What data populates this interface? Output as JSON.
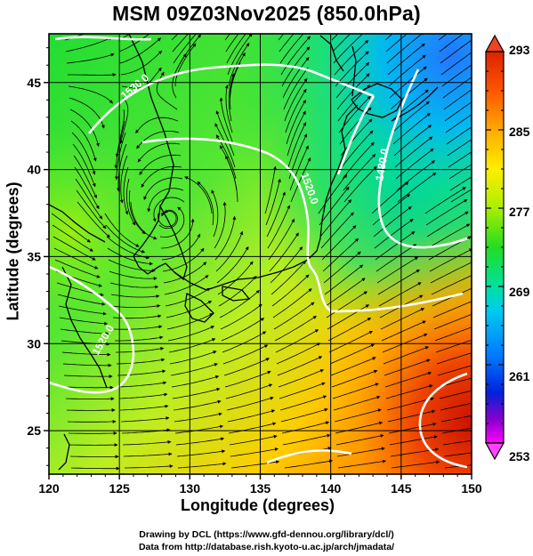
{
  "title": "MSM 09Z03Nov2025 (850.0hPa)",
  "x_axis": {
    "title": "Longitude (degrees)",
    "ticks": [
      "120",
      "125",
      "130",
      "135",
      "140",
      "145",
      "150"
    ],
    "range": [
      120,
      150
    ]
  },
  "y_axis": {
    "title": "Latitude  (degrees)",
    "ticks": [
      "25",
      "30",
      "35",
      "40",
      "45"
    ],
    "range": [
      22.5,
      47.8
    ]
  },
  "colorbar": {
    "labels": [
      "293",
      "285",
      "277",
      "269",
      "261",
      "253"
    ],
    "range": [
      253,
      293
    ],
    "colors": [
      "#ff00ff",
      "#8800cc",
      "#0022dd",
      "#0077ff",
      "#00ccee",
      "#00e0a0",
      "#22dd22",
      "#aaee00",
      "#ffee00",
      "#ffaa00",
      "#ff5500",
      "#dd2200"
    ]
  },
  "contour_labels": [
    "1530.0",
    "1520.0",
    "1480.0",
    "1520.0",
    "1530.0"
  ],
  "credits": {
    "line1": "Drawing by DCL (https://www.gfd-dennou.org/library/dcl/)",
    "line2": "Data from http://database.rish.kyoto-u.ac.jp/arch/jmadata/"
  }
}
